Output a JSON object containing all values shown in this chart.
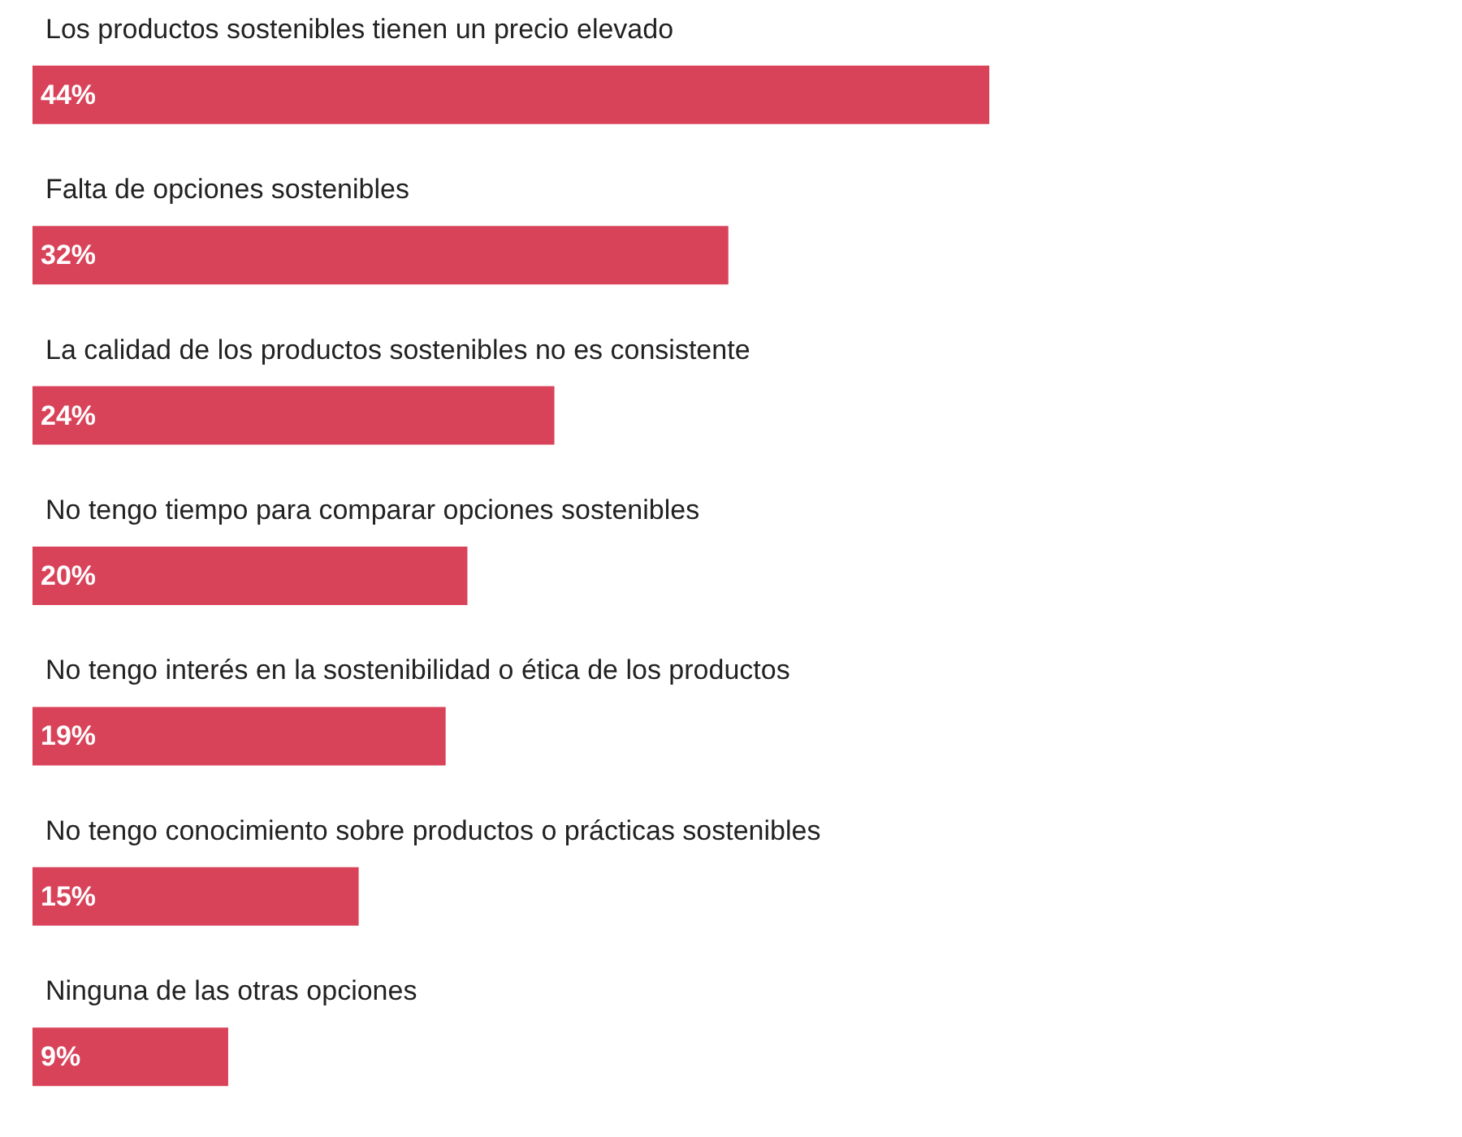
{
  "chart_data": {
    "type": "bar",
    "orientation": "horizontal",
    "categories": [
      "Los productos sostenibles tienen un precio elevado",
      "Falta de opciones sostenibles",
      "La calidad de los productos sostenibles no es consistente",
      "No tengo tiempo para comparar opciones sostenibles",
      "No tengo interés en la sostenibilidad o ética de los productos",
      "No tengo conocimiento sobre productos o prácticas sostenibles",
      "Ninguna de las otras opciones"
    ],
    "values": [
      44,
      32,
      24,
      20,
      19,
      15,
      9
    ],
    "value_labels": [
      "44%",
      "32%",
      "24%",
      "20%",
      "19%",
      "15%",
      "9%"
    ],
    "color": "#d9435a"
  }
}
